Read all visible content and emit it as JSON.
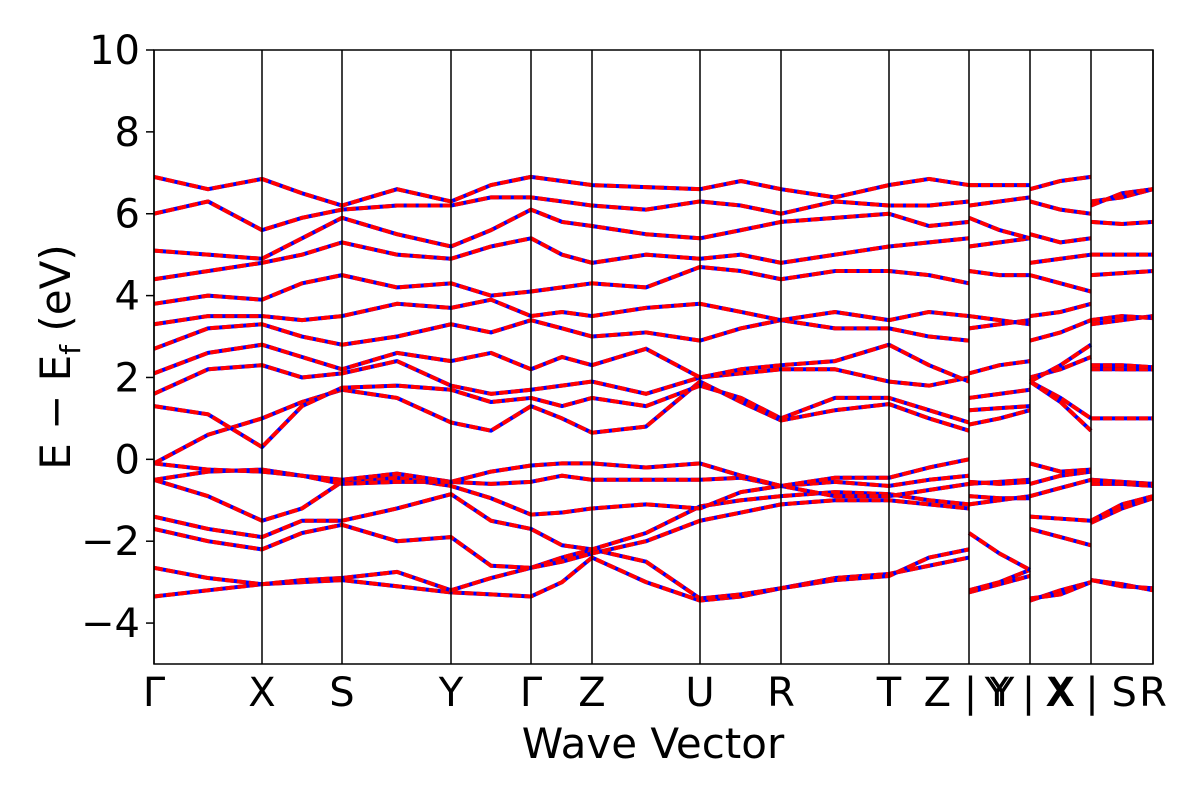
{
  "chart_data": {
    "type": "band-structure",
    "x_label": "Wave Vector",
    "y_label_parts": [
      "E − E",
      "f",
      " (eV)"
    ],
    "line_color": "#0000ff",
    "dash_color": "#ff0000",
    "xlim": [
      0,
      9.99
    ],
    "ylim": [
      -5,
      10
    ],
    "xticks": [
      {
        "value": 0,
        "label": "Γ"
      },
      {
        "value": 1.08,
        "label": "X"
      },
      {
        "value": 1.88,
        "label": "S"
      },
      {
        "value": 2.97,
        "label": "Y"
      },
      {
        "value": 3.77,
        "label": "Γ"
      },
      {
        "value": 4.38,
        "label": "Z"
      },
      {
        "value": 5.46,
        "label": "U"
      },
      {
        "value": 6.27,
        "label": "R"
      },
      {
        "value": 7.35,
        "label": "T"
      },
      {
        "value": 8.15,
        "label": "Z | Y"
      },
      {
        "value": 8.76,
        "label": "Y | X"
      },
      {
        "value": 9.37,
        "label": "X | S"
      },
      {
        "value": 9.99,
        "label": "R"
      }
    ],
    "yticks": [
      {
        "value": -4,
        "label": "−4"
      },
      {
        "value": -2,
        "label": "−2"
      },
      0,
      2,
      4,
      6,
      8,
      10
    ],
    "x": [
      0,
      0.54,
      1.08,
      1.48,
      1.88,
      2.43,
      2.97,
      3.37,
      3.77,
      4.08,
      4.38,
      4.92,
      5.46,
      5.87,
      6.27,
      6.81,
      7.35,
      7.75,
      8.15,
      8.15,
      8.15,
      8.455,
      8.76,
      8.76,
      8.76,
      9.065,
      9.37,
      9.37,
      9.37,
      9.68,
      9.99
    ],
    "bands": [
      {
        "values": [
          -3.35,
          -3.2,
          -3.05,
          -3.0,
          -2.95,
          -3.1,
          -3.25,
          -3.3,
          -3.35,
          -3.0,
          -2.4,
          -3.0,
          -3.45,
          -3.35,
          -3.15,
          -2.9,
          -2.8,
          -2.6,
          -2.4,
          null,
          -3.25,
          -3.05,
          -2.85,
          null,
          -3.45,
          -3.2,
          -3.0,
          null,
          -2.95,
          -3.05,
          -3.2
        ]
      },
      {
        "values": [
          -2.65,
          -2.9,
          -3.05,
          -2.95,
          -2.9,
          -2.75,
          -3.2,
          -2.9,
          -2.65,
          -2.4,
          -2.2,
          -2.5,
          -3.4,
          -3.3,
          -3.15,
          -2.95,
          -2.85,
          -2.4,
          -2.2,
          null,
          -3.2,
          -3.0,
          -2.7,
          null,
          -3.4,
          -3.3,
          -3.0,
          null,
          -2.95,
          -3.1,
          -3.15
        ]
      },
      {
        "values": [
          -1.7,
          -2.0,
          -2.2,
          -1.8,
          -1.6,
          -2.0,
          -1.9,
          -2.6,
          -2.65,
          -2.5,
          -2.3,
          -2.0,
          -1.5,
          -1.3,
          -1.1,
          -1.0,
          -1.0,
          -1.1,
          -1.2,
          null,
          -1.8,
          -2.3,
          -2.7,
          null,
          -1.7,
          -1.9,
          -2.1,
          null,
          -1.55,
          -1.2,
          -0.95
        ]
      },
      {
        "values": [
          -1.4,
          -1.7,
          -1.9,
          -1.5,
          -1.5,
          -1.2,
          -0.85,
          -1.5,
          -1.7,
          -2.1,
          -2.2,
          -1.8,
          -1.15,
          -1.0,
          -0.9,
          -0.8,
          -0.85,
          -1.0,
          -1.1,
          null,
          -1.1,
          -1.0,
          -0.9,
          null,
          -1.4,
          -1.45,
          -1.5,
          null,
          -1.5,
          -1.1,
          -0.9
        ]
      },
      {
        "values": [
          -0.5,
          -0.9,
          -1.5,
          -1.2,
          -0.55,
          -0.45,
          -0.65,
          -0.95,
          -1.35,
          -1.3,
          -1.2,
          -1.1,
          -1.2,
          -0.8,
          -0.65,
          -0.9,
          -0.9,
          -0.75,
          -0.6,
          null,
          -0.9,
          -0.95,
          -0.95,
          null,
          -0.9,
          -0.7,
          -0.5,
          null,
          -0.6,
          -0.6,
          -0.65
        ]
      },
      {
        "values": [
          -0.5,
          -0.3,
          -0.25,
          -0.4,
          -0.5,
          -0.35,
          -0.55,
          -0.6,
          -0.55,
          -0.4,
          -0.5,
          -0.5,
          -0.5,
          -0.45,
          -0.65,
          -0.55,
          -0.65,
          -0.5,
          -0.4,
          null,
          -0.6,
          -0.55,
          -0.5,
          null,
          -0.6,
          -0.4,
          -0.3,
          null,
          -0.5,
          -0.55,
          -0.6
        ]
      },
      {
        "values": [
          -0.1,
          -0.25,
          -0.3,
          -0.4,
          -0.6,
          -0.55,
          -0.55,
          -0.3,
          -0.15,
          -0.1,
          -0.1,
          -0.2,
          -0.1,
          -0.4,
          -0.65,
          -0.45,
          -0.45,
          -0.2,
          0.0,
          null,
          -0.55,
          -0.6,
          -0.55,
          null,
          -0.1,
          -0.3,
          -0.25,
          null,
          -0.5,
          -0.6,
          -0.6
        ]
      },
      {
        "values": [
          -0.1,
          0.6,
          1.0,
          1.4,
          1.7,
          1.5,
          0.9,
          0.7,
          1.3,
          1.0,
          0.65,
          0.8,
          1.9,
          1.4,
          0.95,
          1.2,
          1.35,
          1.0,
          0.7,
          null,
          0.85,
          1.0,
          1.2,
          null,
          1.9,
          1.5,
          1.0,
          null,
          1.0,
          1.0,
          1.0
        ]
      },
      {
        "values": [
          1.3,
          1.1,
          0.3,
          1.3,
          1.75,
          1.8,
          1.7,
          1.4,
          1.5,
          1.3,
          1.5,
          1.3,
          1.8,
          1.5,
          1.0,
          1.5,
          1.5,
          1.2,
          0.9,
          null,
          1.2,
          1.25,
          1.3,
          null,
          1.9,
          1.4,
          0.7,
          null,
          2.2,
          2.2,
          2.2
        ]
      },
      {
        "values": [
          1.6,
          2.2,
          2.3,
          2.0,
          2.1,
          2.4,
          1.8,
          1.6,
          1.7,
          1.8,
          1.9,
          1.6,
          2.0,
          2.1,
          2.2,
          2.2,
          1.9,
          1.8,
          2.0,
          null,
          1.5,
          1.6,
          1.7,
          null,
          2.0,
          2.2,
          2.5,
          null,
          2.25,
          2.2,
          2.2
        ]
      },
      {
        "values": [
          2.1,
          2.6,
          2.8,
          2.5,
          2.2,
          2.6,
          2.4,
          2.6,
          2.2,
          2.5,
          2.3,
          2.7,
          2.0,
          2.2,
          2.3,
          2.4,
          2.8,
          2.3,
          1.9,
          null,
          2.1,
          2.3,
          2.4,
          null,
          1.9,
          2.3,
          2.8,
          null,
          2.3,
          2.3,
          2.25
        ]
      },
      {
        "values": [
          2.7,
          3.2,
          3.3,
          3.0,
          2.8,
          3.0,
          3.3,
          3.1,
          3.4,
          3.2,
          3.0,
          3.1,
          2.9,
          3.2,
          3.4,
          3.2,
          3.2,
          3.0,
          2.9,
          null,
          3.2,
          3.3,
          3.4,
          null,
          2.9,
          3.1,
          3.4,
          null,
          3.3,
          3.4,
          3.5
        ]
      },
      {
        "values": [
          3.3,
          3.5,
          3.5,
          3.4,
          3.5,
          3.8,
          3.7,
          3.9,
          3.5,
          3.6,
          3.5,
          3.7,
          3.8,
          3.6,
          3.4,
          3.6,
          3.4,
          3.6,
          3.5,
          null,
          3.5,
          3.4,
          3.3,
          null,
          3.5,
          3.6,
          3.8,
          null,
          3.4,
          3.5,
          3.45
        ]
      },
      {
        "values": [
          3.8,
          4.0,
          3.9,
          4.3,
          4.5,
          4.2,
          4.3,
          4.0,
          4.1,
          4.2,
          4.3,
          4.2,
          4.7,
          4.6,
          4.4,
          4.6,
          4.6,
          4.5,
          4.3,
          null,
          4.6,
          4.5,
          4.5,
          null,
          4.5,
          4.3,
          4.1,
          null,
          4.5,
          4.55,
          4.6
        ]
      },
      {
        "values": [
          4.4,
          4.6,
          4.8,
          5.0,
          5.3,
          5.0,
          4.9,
          5.2,
          5.4,
          5.0,
          4.8,
          5.0,
          4.9,
          5.0,
          4.8,
          5.0,
          5.2,
          5.3,
          5.4,
          null,
          5.2,
          5.3,
          5.4,
          null,
          4.8,
          4.9,
          5.0,
          null,
          5.0,
          5.0,
          5.0
        ]
      },
      {
        "values": [
          5.1,
          5.0,
          4.9,
          5.4,
          5.9,
          5.5,
          5.2,
          5.6,
          6.1,
          5.8,
          5.7,
          5.5,
          5.4,
          5.6,
          5.8,
          5.9,
          6.0,
          5.7,
          5.8,
          null,
          5.9,
          5.6,
          5.4,
          null,
          5.5,
          5.3,
          5.4,
          null,
          5.8,
          5.75,
          5.8
        ]
      },
      {
        "values": [
          6.0,
          6.3,
          5.6,
          5.9,
          6.1,
          6.2,
          6.2,
          6.4,
          6.4,
          6.3,
          6.2,
          6.1,
          6.3,
          6.2,
          6.0,
          6.3,
          6.2,
          6.2,
          6.3,
          null,
          6.2,
          6.3,
          6.4,
          null,
          6.3,
          6.1,
          6.0,
          null,
          6.3,
          6.4,
          6.6
        ]
      },
      {
        "values": [
          6.9,
          6.6,
          6.85,
          6.5,
          6.2,
          6.6,
          6.3,
          6.7,
          6.9,
          6.8,
          6.7,
          6.65,
          6.6,
          6.8,
          6.6,
          6.4,
          6.7,
          6.85,
          6.7,
          null,
          6.7,
          6.7,
          6.7,
          null,
          6.6,
          6.8,
          6.9,
          null,
          6.2,
          6.5,
          6.6
        ]
      }
    ]
  }
}
